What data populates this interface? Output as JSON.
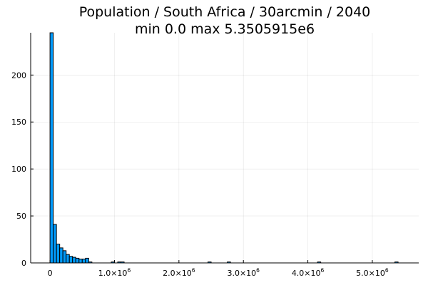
{
  "chart_data": {
    "type": "bar",
    "title": "Population / South Africa / 30arcmin / 2040",
    "subtitle": "min 0.0  max 5.3505915e6",
    "xlabel": "",
    "ylabel": "",
    "bar_color": "#009AFA",
    "grid": true,
    "legend": "none",
    "xlim": [
      -300000,
      5720000
    ],
    "ylim": [
      0,
      245
    ],
    "bin_width": 50000,
    "x_ticks": [
      {
        "value": 0,
        "label": "0"
      },
      {
        "value": 1000000,
        "label": "1.0×10",
        "exp": "6"
      },
      {
        "value": 2000000,
        "label": "2.0×10",
        "exp": "6"
      },
      {
        "value": 3000000,
        "label": "3.0×10",
        "exp": "6"
      },
      {
        "value": 4000000,
        "label": "4.0×10",
        "exp": "6"
      },
      {
        "value": 5000000,
        "label": "5.0×10",
        "exp": "6"
      }
    ],
    "y_ticks": [
      {
        "value": 0,
        "label": "0"
      },
      {
        "value": 50,
        "label": "50"
      },
      {
        "value": 100,
        "label": "100"
      },
      {
        "value": 150,
        "label": "150"
      },
      {
        "value": 200,
        "label": "200"
      }
    ],
    "bins": [
      {
        "x": 0,
        "count": 245
      },
      {
        "x": 50000,
        "count": 41
      },
      {
        "x": 100000,
        "count": 20
      },
      {
        "x": 150000,
        "count": 16
      },
      {
        "x": 200000,
        "count": 13
      },
      {
        "x": 250000,
        "count": 9
      },
      {
        "x": 300000,
        "count": 7
      },
      {
        "x": 350000,
        "count": 6
      },
      {
        "x": 400000,
        "count": 5
      },
      {
        "x": 450000,
        "count": 4
      },
      {
        "x": 500000,
        "count": 4
      },
      {
        "x": 550000,
        "count": 5
      },
      {
        "x": 600000,
        "count": 1
      },
      {
        "x": 950000,
        "count": 1
      },
      {
        "x": 1050000,
        "count": 1
      },
      {
        "x": 1100000,
        "count": 1
      },
      {
        "x": 2450000,
        "count": 1
      },
      {
        "x": 2750000,
        "count": 1
      },
      {
        "x": 4150000,
        "count": 1
      },
      {
        "x": 5350000,
        "count": 1
      }
    ]
  }
}
